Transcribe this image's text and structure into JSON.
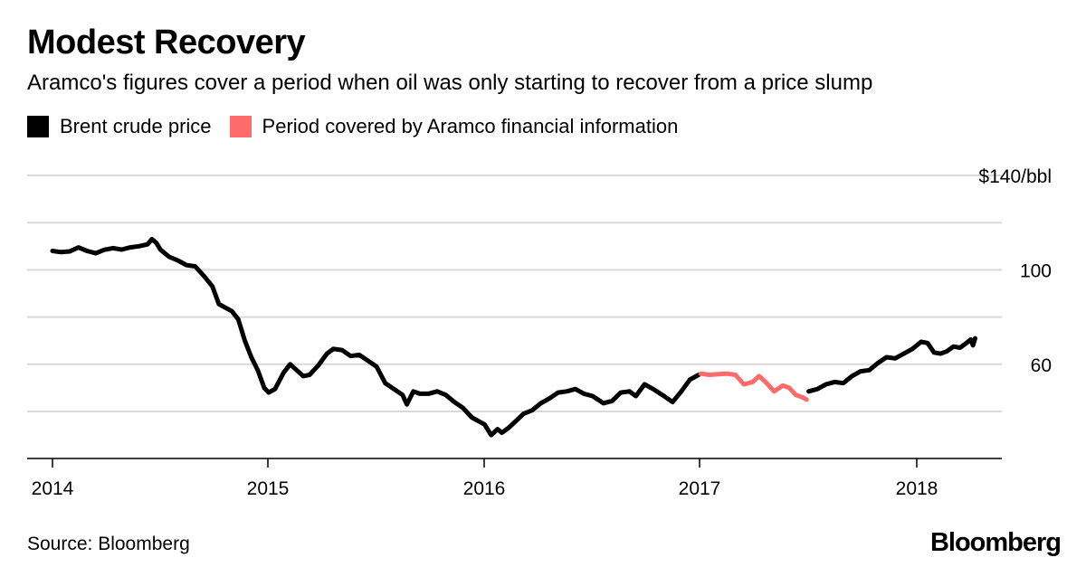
{
  "title": "Modest Recovery",
  "subtitle": "Aramco's figures cover a period when oil was only starting to recover from a price slump",
  "legend": [
    {
      "label": "Brent crude price",
      "color": "#000000"
    },
    {
      "label": "Period covered by Aramco financial information",
      "color": "#ff6b6b"
    }
  ],
  "source": "Source: Bloomberg",
  "brand": "Bloomberg",
  "chart_data": {
    "type": "line",
    "title": "Modest Recovery",
    "ylabel": "$140/bbl",
    "y_unit": "$/bbl",
    "ylim": [
      20,
      140
    ],
    "xlim": [
      2014.0,
      2018.4
    ],
    "grid": "horizontal",
    "legend_placement": "top-left",
    "x_ticks": [
      "2014",
      "2015",
      "2016",
      "2017",
      "2018"
    ],
    "y_tick_labels": [
      {
        "value": 140,
        "label": "$140/bbl"
      },
      {
        "value": 100,
        "label": "100"
      },
      {
        "value": 60,
        "label": "60"
      }
    ],
    "gridlines": [
      140,
      120,
      100,
      80,
      60,
      40
    ],
    "series": [
      {
        "name": "Brent crude price",
        "color": "#000000",
        "points": [
          [
            2014.0,
            108.0
          ],
          [
            2014.04,
            107.5
          ],
          [
            2014.08,
            107.8
          ],
          [
            2014.12,
            109.5
          ],
          [
            2014.16,
            108.0
          ],
          [
            2014.2,
            107.0
          ],
          [
            2014.24,
            108.5
          ],
          [
            2014.28,
            109.2
          ],
          [
            2014.32,
            108.6
          ],
          [
            2014.36,
            109.5
          ],
          [
            2014.4,
            110.0
          ],
          [
            2014.44,
            110.8
          ],
          [
            2014.46,
            113.0
          ],
          [
            2014.48,
            111.5
          ],
          [
            2014.5,
            108.5
          ],
          [
            2014.54,
            105.5
          ],
          [
            2014.58,
            104.0
          ],
          [
            2014.62,
            102.0
          ],
          [
            2014.66,
            101.5
          ],
          [
            2014.7,
            97.5
          ],
          [
            2014.74,
            93.0
          ],
          [
            2014.77,
            85.5
          ],
          [
            2014.8,
            84.0
          ],
          [
            2014.83,
            82.5
          ],
          [
            2014.86,
            79.0
          ],
          [
            2014.89,
            70.0
          ],
          [
            2014.92,
            63.0
          ],
          [
            2014.95,
            57.5
          ],
          [
            2014.98,
            50.0
          ],
          [
            2015.0,
            48.0
          ],
          [
            2015.03,
            49.5
          ],
          [
            2015.07,
            56.5
          ],
          [
            2015.1,
            60.0
          ],
          [
            2015.13,
            57.5
          ],
          [
            2015.16,
            55.0
          ],
          [
            2015.19,
            55.5
          ],
          [
            2015.23,
            59.5
          ],
          [
            2015.27,
            64.5
          ],
          [
            2015.3,
            66.5
          ],
          [
            2015.34,
            66.0
          ],
          [
            2015.38,
            63.5
          ],
          [
            2015.42,
            64.0
          ],
          [
            2015.46,
            61.5
          ],
          [
            2015.5,
            59.0
          ],
          [
            2015.54,
            52.0
          ],
          [
            2015.58,
            49.5
          ],
          [
            2015.62,
            47.0
          ],
          [
            2015.64,
            43.0
          ],
          [
            2015.67,
            48.5
          ],
          [
            2015.7,
            47.5
          ],
          [
            2015.74,
            47.5
          ],
          [
            2015.78,
            48.5
          ],
          [
            2015.82,
            47.0
          ],
          [
            2015.86,
            44.0
          ],
          [
            2015.9,
            41.5
          ],
          [
            2015.94,
            37.5
          ],
          [
            2015.97,
            36.0
          ],
          [
            2016.0,
            34.5
          ],
          [
            2016.03,
            30.0
          ],
          [
            2016.06,
            32.5
          ],
          [
            2016.08,
            31.0
          ],
          [
            2016.11,
            33.0
          ],
          [
            2016.14,
            35.5
          ],
          [
            2016.18,
            39.0
          ],
          [
            2016.22,
            40.5
          ],
          [
            2016.26,
            43.5
          ],
          [
            2016.3,
            45.5
          ],
          [
            2016.34,
            48.0
          ],
          [
            2016.38,
            48.5
          ],
          [
            2016.42,
            49.5
          ],
          [
            2016.46,
            47.5
          ],
          [
            2016.5,
            46.5
          ],
          [
            2016.55,
            43.5
          ],
          [
            2016.59,
            44.5
          ],
          [
            2016.63,
            48.0
          ],
          [
            2016.67,
            48.5
          ],
          [
            2016.7,
            46.5
          ],
          [
            2016.74,
            51.5
          ],
          [
            2016.78,
            49.5
          ],
          [
            2016.83,
            46.5
          ],
          [
            2016.87,
            44.0
          ],
          [
            2016.91,
            48.5
          ],
          [
            2016.95,
            53.5
          ],
          [
            2016.99,
            55.5
          ]
        ]
      },
      {
        "name": "Period covered by Aramco financial information",
        "color": "#ff6b6b",
        "points": [
          [
            2017.0,
            56.0
          ],
          [
            2017.04,
            55.5
          ],
          [
            2017.08,
            55.8
          ],
          [
            2017.12,
            56.0
          ],
          [
            2017.16,
            55.5
          ],
          [
            2017.2,
            51.5
          ],
          [
            2017.24,
            52.5
          ],
          [
            2017.27,
            55.0
          ],
          [
            2017.3,
            52.5
          ],
          [
            2017.34,
            48.5
          ],
          [
            2017.38,
            51.0
          ],
          [
            2017.41,
            50.0
          ],
          [
            2017.44,
            47.0
          ],
          [
            2017.47,
            46.0
          ],
          [
            2017.49,
            45.0
          ]
        ]
      },
      {
        "name": "Brent crude price",
        "color": "#000000",
        "points": [
          [
            2017.5,
            48.5
          ],
          [
            2017.54,
            49.5
          ],
          [
            2017.58,
            51.5
          ],
          [
            2017.62,
            52.5
          ],
          [
            2017.66,
            52.0
          ],
          [
            2017.7,
            55.0
          ],
          [
            2017.74,
            57.0
          ],
          [
            2017.78,
            57.5
          ],
          [
            2017.82,
            60.5
          ],
          [
            2017.86,
            63.0
          ],
          [
            2017.9,
            62.5
          ],
          [
            2017.94,
            64.5
          ],
          [
            2017.98,
            66.5
          ],
          [
            2018.02,
            69.5
          ],
          [
            2018.05,
            69.0
          ],
          [
            2018.08,
            65.0
          ],
          [
            2018.11,
            64.5
          ],
          [
            2018.14,
            65.5
          ],
          [
            2018.17,
            67.5
          ],
          [
            2018.2,
            67.0
          ],
          [
            2018.23,
            69.0
          ],
          [
            2018.25,
            70.5
          ],
          [
            2018.26,
            68.0
          ],
          [
            2018.27,
            71.0
          ]
        ]
      }
    ]
  }
}
